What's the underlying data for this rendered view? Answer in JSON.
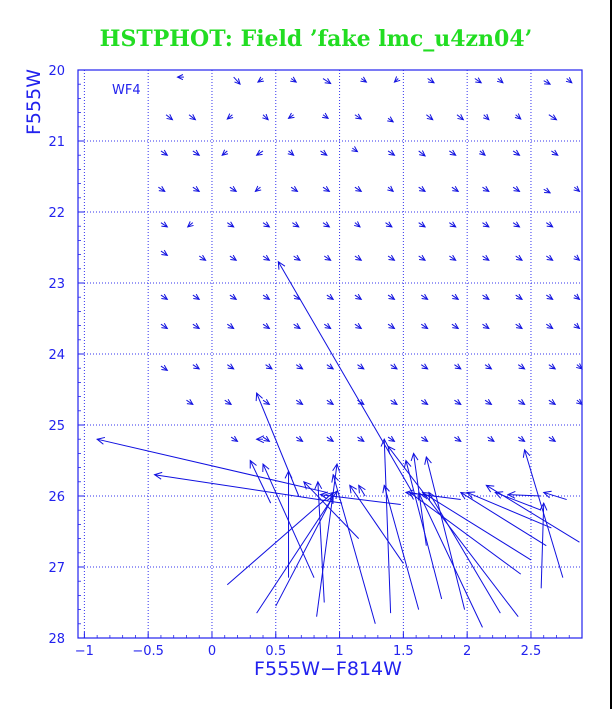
{
  "colors": {
    "title": "#22dd22",
    "axis": "#2222ee",
    "vector": "#1010e0",
    "grid": "#3333ee",
    "background": "#ffffff"
  },
  "chart_data": {
    "type": "vector-field",
    "title": "HSTPHOT: Field ’fake lmc_u4zn04’",
    "xlabel": "F555W−F814W",
    "ylabel": "F555W",
    "panel_label": "WF4",
    "xlim": [
      -1.05,
      2.9
    ],
    "ylim": [
      28,
      20
    ],
    "y_inverted": true,
    "grid": true,
    "grid_style": "dotted",
    "xticks": [
      -1,
      -0.5,
      0,
      0.5,
      1,
      1.5,
      2,
      2.5
    ],
    "xtick_labels": [
      "−1",
      "−0.5",
      "0",
      "0.5",
      "1",
      "1.5",
      "2",
      "2.5"
    ],
    "yticks": [
      20,
      21,
      22,
      23,
      24,
      25,
      26,
      27,
      28
    ],
    "ytick_labels": [
      "20",
      "21",
      "22",
      "23",
      "24",
      "25",
      "26",
      "27",
      "28"
    ],
    "small_arrows": [
      {
        "x": -0.22,
        "y": 20.1,
        "dx": -0.05,
        "dy": 0.0
      },
      {
        "x": 0.17,
        "y": 20.1,
        "dx": 0.05,
        "dy": 0.1
      },
      {
        "x": 0.4,
        "y": 20.12,
        "dx": -0.04,
        "dy": 0.05
      },
      {
        "x": 0.62,
        "y": 20.12,
        "dx": 0.04,
        "dy": 0.05
      },
      {
        "x": 0.87,
        "y": 20.12,
        "dx": 0.06,
        "dy": 0.07
      },
      {
        "x": 1.17,
        "y": 20.12,
        "dx": 0.04,
        "dy": 0.05
      },
      {
        "x": 1.46,
        "y": 20.12,
        "dx": -0.03,
        "dy": 0.05
      },
      {
        "x": 1.69,
        "y": 20.12,
        "dx": 0.05,
        "dy": 0.06
      },
      {
        "x": 2.06,
        "y": 20.12,
        "dx": 0.05,
        "dy": 0.06
      },
      {
        "x": 2.24,
        "y": 20.12,
        "dx": 0.04,
        "dy": 0.06
      },
      {
        "x": 2.6,
        "y": 20.15,
        "dx": 0.05,
        "dy": 0.05
      },
      {
        "x": 2.78,
        "y": 20.12,
        "dx": 0.04,
        "dy": 0.06
      },
      {
        "x": -0.36,
        "y": 20.63,
        "dx": 0.05,
        "dy": 0.07
      },
      {
        "x": -0.18,
        "y": 20.63,
        "dx": 0.05,
        "dy": 0.07
      },
      {
        "x": 0.16,
        "y": 20.63,
        "dx": -0.04,
        "dy": 0.06
      },
      {
        "x": 0.4,
        "y": 20.63,
        "dx": 0.04,
        "dy": 0.07
      },
      {
        "x": 0.64,
        "y": 20.63,
        "dx": -0.04,
        "dy": 0.05
      },
      {
        "x": 0.87,
        "y": 20.63,
        "dx": 0.04,
        "dy": 0.05
      },
      {
        "x": 1.12,
        "y": 20.63,
        "dx": 0.05,
        "dy": 0.06
      },
      {
        "x": 1.38,
        "y": 20.68,
        "dx": 0.04,
        "dy": 0.05
      },
      {
        "x": 1.68,
        "y": 20.63,
        "dx": 0.05,
        "dy": 0.07
      },
      {
        "x": 1.92,
        "y": 20.63,
        "dx": 0.05,
        "dy": 0.07
      },
      {
        "x": 2.13,
        "y": 20.63,
        "dx": 0.04,
        "dy": 0.07
      },
      {
        "x": 2.38,
        "y": 20.63,
        "dx": 0.04,
        "dy": 0.06
      },
      {
        "x": 2.64,
        "y": 20.63,
        "dx": 0.06,
        "dy": 0.07
      },
      {
        "x": -0.4,
        "y": 21.14,
        "dx": 0.05,
        "dy": 0.06
      },
      {
        "x": -0.15,
        "y": 21.14,
        "dx": 0.05,
        "dy": 0.06
      },
      {
        "x": 0.12,
        "y": 21.14,
        "dx": -0.04,
        "dy": 0.06
      },
      {
        "x": 0.4,
        "y": 21.14,
        "dx": -0.05,
        "dy": 0.06
      },
      {
        "x": 0.6,
        "y": 21.14,
        "dx": 0.04,
        "dy": 0.06
      },
      {
        "x": 0.85,
        "y": 21.14,
        "dx": 0.05,
        "dy": 0.06
      },
      {
        "x": 1.1,
        "y": 21.1,
        "dx": 0.04,
        "dy": 0.05
      },
      {
        "x": 1.38,
        "y": 21.14,
        "dx": 0.05,
        "dy": 0.06
      },
      {
        "x": 1.62,
        "y": 21.14,
        "dx": 0.05,
        "dy": 0.07
      },
      {
        "x": 1.86,
        "y": 21.14,
        "dx": 0.05,
        "dy": 0.06
      },
      {
        "x": 2.1,
        "y": 21.14,
        "dx": 0.04,
        "dy": 0.06
      },
      {
        "x": 2.36,
        "y": 21.14,
        "dx": 0.05,
        "dy": 0.06
      },
      {
        "x": 2.66,
        "y": 21.14,
        "dx": 0.05,
        "dy": 0.06
      },
      {
        "x": -0.42,
        "y": 21.65,
        "dx": 0.05,
        "dy": 0.06
      },
      {
        "x": -0.15,
        "y": 21.65,
        "dx": 0.05,
        "dy": 0.06
      },
      {
        "x": 0.14,
        "y": 21.65,
        "dx": 0.05,
        "dy": 0.06
      },
      {
        "x": 0.38,
        "y": 21.65,
        "dx": -0.04,
        "dy": 0.06
      },
      {
        "x": 0.62,
        "y": 21.65,
        "dx": 0.05,
        "dy": 0.06
      },
      {
        "x": 0.87,
        "y": 21.65,
        "dx": 0.05,
        "dy": 0.06
      },
      {
        "x": 1.12,
        "y": 21.65,
        "dx": 0.05,
        "dy": 0.06
      },
      {
        "x": 1.38,
        "y": 21.65,
        "dx": 0.04,
        "dy": 0.06
      },
      {
        "x": 1.62,
        "y": 21.65,
        "dx": 0.05,
        "dy": 0.06
      },
      {
        "x": 1.88,
        "y": 21.65,
        "dx": 0.05,
        "dy": 0.06
      },
      {
        "x": 2.12,
        "y": 21.65,
        "dx": 0.05,
        "dy": 0.06
      },
      {
        "x": 2.36,
        "y": 21.65,
        "dx": 0.05,
        "dy": 0.06
      },
      {
        "x": 2.6,
        "y": 21.68,
        "dx": 0.05,
        "dy": 0.05
      },
      {
        "x": 2.84,
        "y": 21.65,
        "dx": 0.04,
        "dy": 0.06
      },
      {
        "x": -0.4,
        "y": 22.15,
        "dx": 0.05,
        "dy": 0.06
      },
      {
        "x": -0.15,
        "y": 22.15,
        "dx": -0.04,
        "dy": 0.06
      },
      {
        "x": 0.12,
        "y": 22.15,
        "dx": 0.05,
        "dy": 0.06
      },
      {
        "x": 0.4,
        "y": 22.15,
        "dx": 0.05,
        "dy": 0.06
      },
      {
        "x": 0.63,
        "y": 22.15,
        "dx": 0.05,
        "dy": 0.06
      },
      {
        "x": 0.87,
        "y": 22.15,
        "dx": 0.05,
        "dy": 0.06
      },
      {
        "x": 1.12,
        "y": 22.15,
        "dx": 0.04,
        "dy": 0.06
      },
      {
        "x": 1.36,
        "y": 22.15,
        "dx": 0.05,
        "dy": 0.06
      },
      {
        "x": 1.62,
        "y": 22.15,
        "dx": 0.05,
        "dy": 0.06
      },
      {
        "x": 1.86,
        "y": 22.15,
        "dx": 0.05,
        "dy": 0.06
      },
      {
        "x": 2.12,
        "y": 22.15,
        "dx": 0.05,
        "dy": 0.06
      },
      {
        "x": 2.36,
        "y": 22.15,
        "dx": 0.05,
        "dy": 0.06
      },
      {
        "x": 2.62,
        "y": 22.15,
        "dx": 0.05,
        "dy": 0.06
      },
      {
        "x": -0.4,
        "y": 22.55,
        "dx": 0.05,
        "dy": 0.06
      },
      {
        "x": -0.1,
        "y": 22.62,
        "dx": 0.05,
        "dy": 0.06
      },
      {
        "x": 0.14,
        "y": 22.62,
        "dx": 0.05,
        "dy": 0.06
      },
      {
        "x": 0.4,
        "y": 22.62,
        "dx": 0.05,
        "dy": 0.06
      },
      {
        "x": 0.64,
        "y": 22.62,
        "dx": 0.05,
        "dy": 0.06
      },
      {
        "x": 0.88,
        "y": 22.62,
        "dx": 0.05,
        "dy": 0.06
      },
      {
        "x": 1.12,
        "y": 22.62,
        "dx": 0.05,
        "dy": 0.06
      },
      {
        "x": 1.38,
        "y": 22.62,
        "dx": 0.05,
        "dy": 0.06
      },
      {
        "x": 1.62,
        "y": 22.62,
        "dx": 0.05,
        "dy": 0.06
      },
      {
        "x": 1.86,
        "y": 22.62,
        "dx": 0.05,
        "dy": 0.06
      },
      {
        "x": 2.12,
        "y": 22.62,
        "dx": 0.05,
        "dy": 0.06
      },
      {
        "x": 2.38,
        "y": 22.62,
        "dx": 0.05,
        "dy": 0.06
      },
      {
        "x": 2.62,
        "y": 22.62,
        "dx": 0.05,
        "dy": 0.06
      },
      {
        "x": 2.84,
        "y": 22.62,
        "dx": 0.04,
        "dy": 0.06
      },
      {
        "x": -0.4,
        "y": 23.17,
        "dx": 0.05,
        "dy": 0.06
      },
      {
        "x": -0.15,
        "y": 23.17,
        "dx": 0.05,
        "dy": 0.06
      },
      {
        "x": 0.14,
        "y": 23.17,
        "dx": 0.05,
        "dy": 0.06
      },
      {
        "x": 0.4,
        "y": 23.17,
        "dx": 0.05,
        "dy": 0.06
      },
      {
        "x": 0.64,
        "y": 23.17,
        "dx": 0.05,
        "dy": 0.06
      },
      {
        "x": 0.9,
        "y": 23.17,
        "dx": 0.05,
        "dy": 0.06
      },
      {
        "x": 1.12,
        "y": 23.17,
        "dx": 0.05,
        "dy": 0.06
      },
      {
        "x": 1.38,
        "y": 23.17,
        "dx": 0.05,
        "dy": 0.06
      },
      {
        "x": 1.64,
        "y": 23.17,
        "dx": 0.05,
        "dy": 0.06
      },
      {
        "x": 1.88,
        "y": 23.17,
        "dx": 0.05,
        "dy": 0.06
      },
      {
        "x": 2.12,
        "y": 23.17,
        "dx": 0.05,
        "dy": 0.06
      },
      {
        "x": 2.38,
        "y": 23.17,
        "dx": 0.05,
        "dy": 0.06
      },
      {
        "x": 2.62,
        "y": 23.17,
        "dx": 0.05,
        "dy": 0.06
      },
      {
        "x": 2.84,
        "y": 23.17,
        "dx": 0.04,
        "dy": 0.06
      },
      {
        "x": -0.4,
        "y": 23.58,
        "dx": 0.05,
        "dy": 0.06
      },
      {
        "x": -0.15,
        "y": 23.58,
        "dx": 0.05,
        "dy": 0.06
      },
      {
        "x": 0.12,
        "y": 23.58,
        "dx": 0.05,
        "dy": 0.06
      },
      {
        "x": 0.4,
        "y": 23.58,
        "dx": 0.05,
        "dy": 0.06
      },
      {
        "x": 0.64,
        "y": 23.58,
        "dx": 0.05,
        "dy": 0.06
      },
      {
        "x": 0.88,
        "y": 23.58,
        "dx": 0.05,
        "dy": 0.06
      },
      {
        "x": 1.12,
        "y": 23.58,
        "dx": 0.05,
        "dy": 0.06
      },
      {
        "x": 1.38,
        "y": 23.58,
        "dx": 0.05,
        "dy": 0.06
      },
      {
        "x": 1.64,
        "y": 23.58,
        "dx": 0.05,
        "dy": 0.06
      },
      {
        "x": 1.88,
        "y": 23.58,
        "dx": 0.05,
        "dy": 0.06
      },
      {
        "x": 2.12,
        "y": 23.58,
        "dx": 0.05,
        "dy": 0.06
      },
      {
        "x": 2.38,
        "y": 23.58,
        "dx": 0.05,
        "dy": 0.06
      },
      {
        "x": 2.62,
        "y": 23.58,
        "dx": 0.05,
        "dy": 0.06
      },
      {
        "x": 2.84,
        "y": 23.58,
        "dx": 0.04,
        "dy": 0.06
      },
      {
        "x": -0.4,
        "y": 24.17,
        "dx": 0.05,
        "dy": 0.06
      },
      {
        "x": -0.15,
        "y": 24.15,
        "dx": 0.05,
        "dy": 0.06
      },
      {
        "x": 0.12,
        "y": 24.15,
        "dx": 0.05,
        "dy": 0.06
      },
      {
        "x": 0.42,
        "y": 24.15,
        "dx": 0.05,
        "dy": 0.06
      },
      {
        "x": 0.66,
        "y": 24.15,
        "dx": 0.05,
        "dy": 0.06
      },
      {
        "x": 0.9,
        "y": 24.15,
        "dx": 0.05,
        "dy": 0.06
      },
      {
        "x": 1.14,
        "y": 24.15,
        "dx": 0.05,
        "dy": 0.06
      },
      {
        "x": 1.4,
        "y": 24.15,
        "dx": 0.05,
        "dy": 0.06
      },
      {
        "x": 1.64,
        "y": 24.15,
        "dx": 0.05,
        "dy": 0.06
      },
      {
        "x": 1.9,
        "y": 24.15,
        "dx": 0.05,
        "dy": 0.06
      },
      {
        "x": 2.14,
        "y": 24.15,
        "dx": 0.05,
        "dy": 0.06
      },
      {
        "x": 2.4,
        "y": 24.15,
        "dx": 0.05,
        "dy": 0.06
      },
      {
        "x": 2.64,
        "y": 24.15,
        "dx": 0.05,
        "dy": 0.06
      },
      {
        "x": 2.86,
        "y": 24.15,
        "dx": 0.04,
        "dy": 0.06
      },
      {
        "x": -0.2,
        "y": 24.65,
        "dx": 0.05,
        "dy": 0.06
      },
      {
        "x": 0.1,
        "y": 24.65,
        "dx": 0.05,
        "dy": 0.06
      },
      {
        "x": 0.4,
        "y": 24.65,
        "dx": 0.05,
        "dy": 0.06
      },
      {
        "x": 0.66,
        "y": 24.65,
        "dx": 0.05,
        "dy": 0.06
      },
      {
        "x": 0.9,
        "y": 24.65,
        "dx": 0.05,
        "dy": 0.06
      },
      {
        "x": 1.14,
        "y": 24.65,
        "dx": 0.05,
        "dy": 0.06
      },
      {
        "x": 1.4,
        "y": 24.65,
        "dx": 0.05,
        "dy": 0.06
      },
      {
        "x": 1.64,
        "y": 24.65,
        "dx": 0.05,
        "dy": 0.06
      },
      {
        "x": 1.9,
        "y": 24.65,
        "dx": 0.05,
        "dy": 0.06
      },
      {
        "x": 2.14,
        "y": 24.65,
        "dx": 0.05,
        "dy": 0.06
      },
      {
        "x": 2.4,
        "y": 24.65,
        "dx": 0.05,
        "dy": 0.06
      },
      {
        "x": 2.64,
        "y": 24.65,
        "dx": 0.05,
        "dy": 0.06
      },
      {
        "x": 2.86,
        "y": 24.65,
        "dx": 0.04,
        "dy": 0.06
      },
      {
        "x": 0.15,
        "y": 25.17,
        "dx": 0.05,
        "dy": 0.06
      },
      {
        "x": 0.4,
        "y": 25.17,
        "dx": 0.05,
        "dy": 0.06
      },
      {
        "x": 0.66,
        "y": 25.17,
        "dx": 0.05,
        "dy": 0.06
      },
      {
        "x": 0.9,
        "y": 25.17,
        "dx": 0.05,
        "dy": 0.06
      },
      {
        "x": 1.14,
        "y": 25.17,
        "dx": 0.05,
        "dy": 0.06
      },
      {
        "x": 1.38,
        "y": 25.17,
        "dx": 0.05,
        "dy": 0.06
      },
      {
        "x": 1.64,
        "y": 25.17,
        "dx": 0.05,
        "dy": 0.06
      },
      {
        "x": 1.9,
        "y": 25.17,
        "dx": 0.05,
        "dy": 0.06
      },
      {
        "x": 2.16,
        "y": 25.17,
        "dx": 0.05,
        "dy": 0.06
      },
      {
        "x": 2.4,
        "y": 25.17,
        "dx": 0.05,
        "dy": 0.06
      },
      {
        "x": 2.64,
        "y": 25.17,
        "dx": 0.05,
        "dy": 0.06
      }
    ],
    "long_arrows": [
      {
        "x0": 0.9,
        "y0": 25.95,
        "x1": -0.9,
        "y1": 25.2
      },
      {
        "x0": 1.02,
        "y0": 26.1,
        "x1": -0.45,
        "y1": 25.7
      },
      {
        "x0": 0.68,
        "y0": 26.0,
        "x1": 0.35,
        "y1": 24.55
      },
      {
        "x0": 1.58,
        "y0": 25.98,
        "x1": 0.52,
        "y1": 22.7
      },
      {
        "x0": 0.35,
        "y0": 27.65,
        "x1": 0.98,
        "y1": 25.93
      },
      {
        "x0": 0.12,
        "y0": 27.25,
        "x1": 0.95,
        "y1": 25.95
      },
      {
        "x0": 0.5,
        "y0": 27.55,
        "x1": 0.95,
        "y1": 26.0
      },
      {
        "x0": 0.6,
        "y0": 27.15,
        "x1": 0.6,
        "y1": 25.65
      },
      {
        "x0": 0.82,
        "y0": 27.7,
        "x1": 0.98,
        "y1": 25.55
      },
      {
        "x0": 0.4,
        "y0": 25.2,
        "x1": 0.35,
        "y1": 25.2
      },
      {
        "x0": 0.88,
        "y0": 27.5,
        "x1": 0.83,
        "y1": 25.8
      },
      {
        "x0": 0.46,
        "y0": 26.1,
        "x1": 0.3,
        "y1": 25.5
      },
      {
        "x0": 0.8,
        "y0": 27.15,
        "x1": 0.4,
        "y1": 25.55
      },
      {
        "x0": 1.15,
        "y0": 26.6,
        "x1": 0.72,
        "y1": 25.8
      },
      {
        "x0": 1.5,
        "y0": 26.95,
        "x1": 1.08,
        "y1": 25.85
      },
      {
        "x0": 1.28,
        "y0": 27.8,
        "x1": 0.95,
        "y1": 25.7
      },
      {
        "x0": 1.62,
        "y0": 27.6,
        "x1": 1.35,
        "y1": 25.85
      },
      {
        "x0": 1.4,
        "y0": 27.65,
        "x1": 1.35,
        "y1": 25.2
      },
      {
        "x0": 1.68,
        "y0": 26.7,
        "x1": 1.58,
        "y1": 25.4
      },
      {
        "x0": 1.8,
        "y0": 27.45,
        "x1": 1.52,
        "y1": 25.5
      },
      {
        "x0": 1.98,
        "y0": 27.6,
        "x1": 1.68,
        "y1": 25.45
      },
      {
        "x0": 2.12,
        "y0": 27.85,
        "x1": 1.62,
        "y1": 25.95
      },
      {
        "x0": 2.4,
        "y0": 27.7,
        "x1": 1.38,
        "y1": 25.3
      },
      {
        "x0": 2.26,
        "y0": 27.65,
        "x1": 1.7,
        "y1": 25.95
      },
      {
        "x0": 2.42,
        "y0": 27.1,
        "x1": 1.55,
        "y1": 25.95
      },
      {
        "x0": 2.5,
        "y0": 26.9,
        "x1": 1.65,
        "y1": 25.95
      },
      {
        "x0": 2.62,
        "y0": 26.7,
        "x1": 1.95,
        "y1": 25.95
      },
      {
        "x0": 2.66,
        "y0": 26.45,
        "x1": 2.0,
        "y1": 25.95
      },
      {
        "x0": 2.58,
        "y0": 26.2,
        "x1": 2.22,
        "y1": 25.95
      },
      {
        "x0": 2.88,
        "y0": 26.65,
        "x1": 2.15,
        "y1": 25.85
      },
      {
        "x0": 2.78,
        "y0": 26.05,
        "x1": 2.6,
        "y1": 25.95
      },
      {
        "x0": 2.58,
        "y0": 26.0,
        "x1": 2.32,
        "y1": 25.98
      },
      {
        "x0": 2.75,
        "y0": 27.15,
        "x1": 2.45,
        "y1": 25.35
      },
      {
        "x0": 2.58,
        "y0": 27.3,
        "x1": 2.6,
        "y1": 26.1
      },
      {
        "x0": 1.95,
        "y0": 26.05,
        "x1": 1.52,
        "y1": 25.95
      },
      {
        "x0": 1.48,
        "y0": 26.12,
        "x1": 0.85,
        "y1": 25.98
      },
      {
        "x0": 1.2,
        "y0": 26.0,
        "x1": 1.15,
        "y1": 25.85
      }
    ]
  }
}
